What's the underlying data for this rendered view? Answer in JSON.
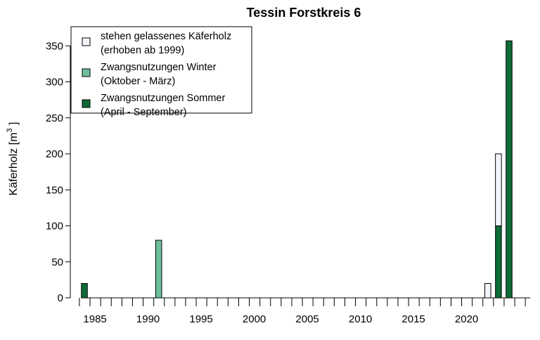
{
  "chart_data": {
    "type": "bar",
    "stacked": true,
    "title": "Tessin Forstkreis 6",
    "ylabel": "Käferholz [m",
    "ylabel_superscript": "3",
    "ylabel_suffix": " ]",
    "xlabel": "",
    "ylim": [
      0,
      360
    ],
    "yticks": [
      0,
      50,
      100,
      150,
      200,
      250,
      300,
      350
    ],
    "xlim": [
      1983,
      2025
    ],
    "xticks": [
      1985,
      1990,
      1995,
      2000,
      2005,
      2010,
      2015,
      2020
    ],
    "grid": false,
    "legend_position": "top-left",
    "series": [
      {
        "name": "Zwangsnutzungen Sommer\n(April - September)",
        "color": "#0f6b36",
        "points": [
          [
            1984,
            20
          ],
          [
            2023,
            100
          ],
          [
            2024,
            357
          ]
        ]
      },
      {
        "name": "Zwangsnutzungen Winter\n(Oktober - März)",
        "color": "#6ebf9c",
        "points": [
          [
            1991,
            80
          ]
        ]
      },
      {
        "name": "stehen gelassenes Käferholz\n(erhoben ab 1999)",
        "color": "#f2f6fa",
        "points": [
          [
            2022,
            20
          ],
          [
            2023,
            100
          ]
        ]
      }
    ],
    "legend_order": [
      2,
      1,
      0
    ]
  }
}
